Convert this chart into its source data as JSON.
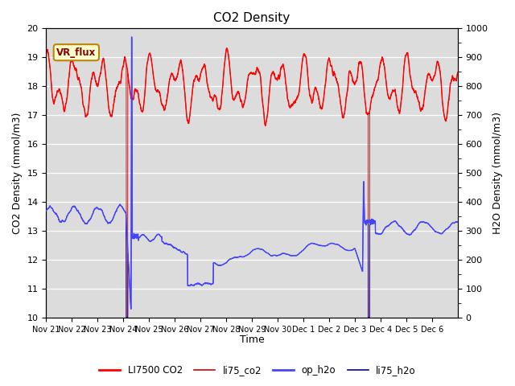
{
  "title": "CO2 Density",
  "xlabel": "Time",
  "ylabel_left": "CO2 Density (mmol/m3)",
  "ylabel_right": "H2O Density (mmol/m3)",
  "ylim_left": [
    10.0,
    20.0
  ],
  "ylim_right": [
    0,
    1000
  ],
  "yticks_left": [
    10.0,
    11.0,
    12.0,
    13.0,
    14.0,
    15.0,
    16.0,
    17.0,
    18.0,
    19.0,
    20.0
  ],
  "yticks_right": [
    0,
    100,
    200,
    300,
    400,
    500,
    600,
    700,
    800,
    900,
    1000
  ],
  "xtick_labels": [
    "Nov 21",
    "Nov 22",
    "Nov 23",
    "Nov 24",
    "Nov 25",
    "Nov 26",
    "Nov 27",
    "Nov 28",
    "Nov 29",
    "Nov 30",
    "Dec 1",
    "Dec 2",
    "Dec 3",
    "Dec 4",
    "Dec 5",
    "Dec 6"
  ],
  "n_days": 16,
  "background_color": "#dcdcdc",
  "vr_flux_label": "VR_flux",
  "vr_flux_bg": "#ffffcc",
  "vr_flux_border": "#b8860b",
  "legend_entries": [
    "LI7500 CO2",
    "li75_co2",
    "op_h2o",
    "li75_h2o"
  ],
  "co2_color": "#ff0000",
  "li75_co2_color": "#cc0000",
  "op_h2o_color": "#4444ff",
  "li75_h2o_color": "#0000aa",
  "spike1_day": 3.15,
  "spike2_day": 12.55,
  "title_fontsize": 11,
  "axis_label_fontsize": 9,
  "tick_fontsize": 8
}
